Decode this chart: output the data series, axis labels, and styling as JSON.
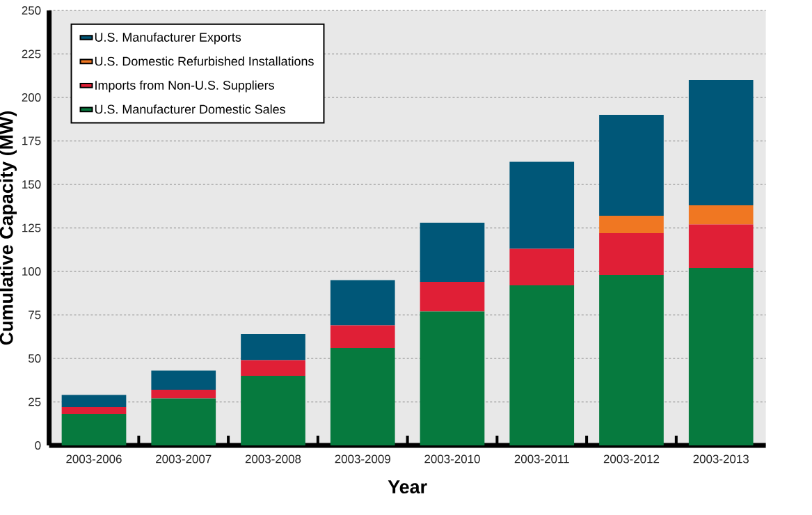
{
  "chart_data": {
    "type": "bar",
    "stacked": true,
    "xlabel": "Year",
    "ylabel": "Cumulative Capacity (MW)",
    "categories": [
      "2003-2006",
      "2003-2007",
      "2003-2008",
      "2003-2009",
      "2003-2010",
      "2003-2011",
      "2003-2012",
      "2003-2013"
    ],
    "series": [
      {
        "name": "U.S. Manufacturer Domestic Sales",
        "color": "#067a3e",
        "values": [
          18,
          27,
          40,
          56,
          77,
          92,
          98,
          102
        ]
      },
      {
        "name": "Imports from Non-U.S. Suppliers",
        "color": "#e01f36",
        "values": [
          4,
          5,
          9,
          13,
          17,
          21,
          24,
          25
        ]
      },
      {
        "name": "U.S. Domestic Refurbished Installations",
        "color": "#f07722",
        "values": [
          0,
          0,
          0,
          0,
          0,
          0,
          10,
          11
        ]
      },
      {
        "name": "U.S. Manufacturer Exports",
        "color": "#005778",
        "values": [
          7,
          11,
          15,
          26,
          34,
          50,
          58,
          72
        ]
      }
    ],
    "ylim": [
      0,
      250
    ],
    "yticks": [
      0,
      25,
      50,
      75,
      100,
      125,
      150,
      175,
      200,
      225,
      250
    ],
    "grid": "y",
    "legend": "top left"
  }
}
